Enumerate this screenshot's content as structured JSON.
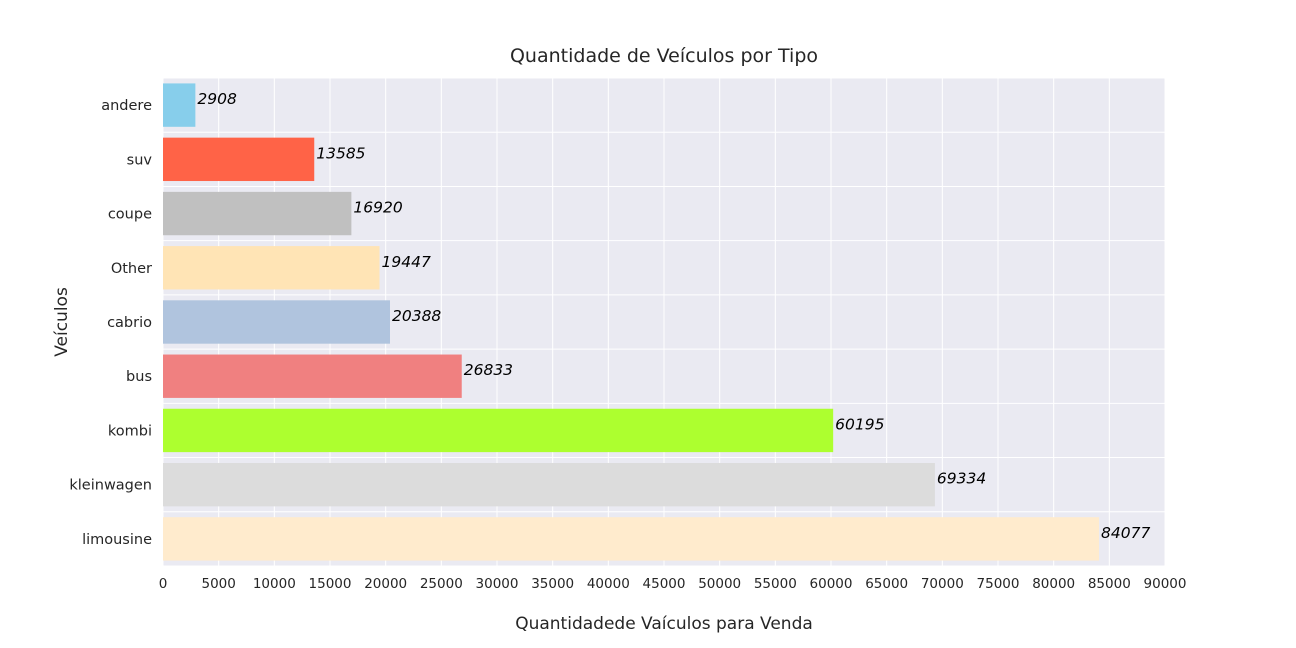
{
  "chart_data": {
    "type": "bar",
    "orientation": "horizontal",
    "title": "Quantidade de Veículos por Tipo",
    "xlabel": "Quantidadede Vaículos para Venda",
    "ylabel": "Veículos",
    "xlim": [
      0,
      90000
    ],
    "x_ticks": [
      0,
      5000,
      10000,
      15000,
      20000,
      25000,
      30000,
      35000,
      40000,
      45000,
      50000,
      55000,
      60000,
      65000,
      70000,
      75000,
      80000,
      85000,
      90000
    ],
    "grid": true,
    "categories": [
      "andere",
      "suv",
      "coupe",
      "Other",
      "cabrio",
      "bus",
      "kombi",
      "kleinwagen",
      "limousine"
    ],
    "values": [
      2908,
      13585,
      16920,
      19447,
      20388,
      26833,
      60195,
      69334,
      84077
    ],
    "colors": [
      "#87ceeb",
      "#ff6347",
      "#c0c0c0",
      "#ffe4b5",
      "#b0c4de",
      "#f08080",
      "#adff2f",
      "#dcdcdc",
      "#ffebcd"
    ],
    "plot_background": "#eaeaf2",
    "grid_color": "#ffffff"
  }
}
